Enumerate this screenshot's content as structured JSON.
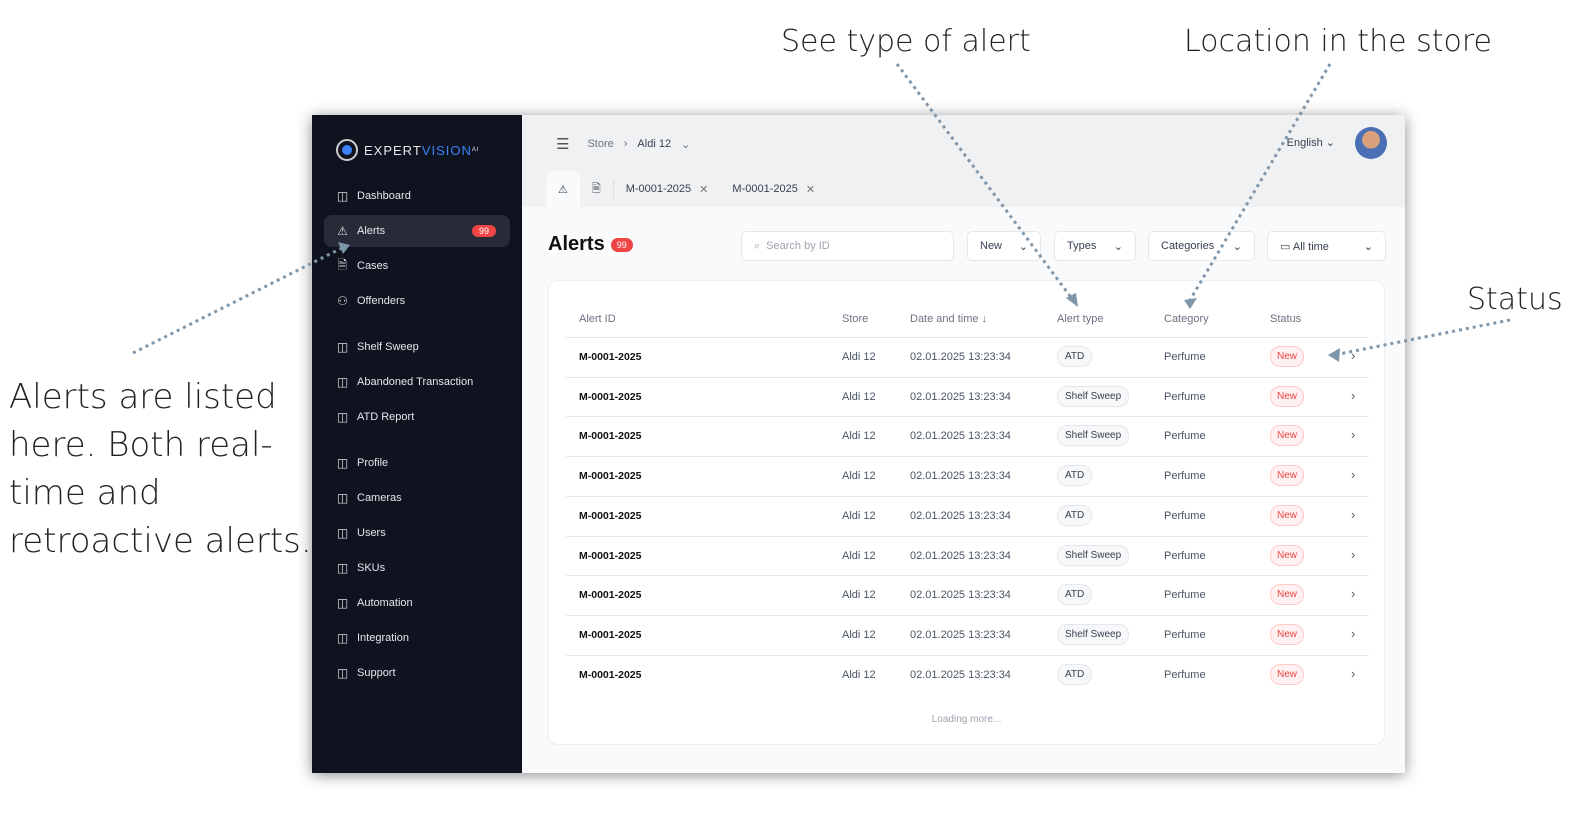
{
  "annotations": {
    "alert_type": "See type of alert",
    "location": "Location in the store",
    "status": "Status",
    "left": [
      "Alerts are listed",
      "here. Both real-",
      "time and",
      "retroactive alerts."
    ]
  },
  "logo": {
    "text1": "EXPERT",
    "text2": "VISION",
    "sup": "AI"
  },
  "sidebar": {
    "items": [
      {
        "label": "Dashboard",
        "icon": "grid-icon"
      },
      {
        "label": "Alerts",
        "icon": "warning-icon",
        "badge": "99",
        "active": true
      },
      {
        "label": "Cases",
        "icon": "document-icon"
      },
      {
        "label": "Offenders",
        "icon": "user-icon"
      },
      {
        "label": "Shelf Sweep",
        "icon": "grid-icon"
      },
      {
        "label": "Abandoned Transaction",
        "icon": "grid-icon"
      },
      {
        "label": "ATD Report",
        "icon": "grid-icon"
      },
      {
        "label": "Profile",
        "icon": "grid-icon"
      },
      {
        "label": "Cameras",
        "icon": "grid-icon"
      },
      {
        "label": "Users",
        "icon": "grid-icon"
      },
      {
        "label": "SKUs",
        "icon": "grid-icon"
      },
      {
        "label": "Automation",
        "icon": "grid-icon"
      },
      {
        "label": "Integration",
        "icon": "grid-icon"
      },
      {
        "label": "Support",
        "icon": "grid-icon"
      }
    ]
  },
  "header": {
    "breadcrumb": [
      "Store",
      "Aldi 12"
    ],
    "language": "English",
    "tabs": [
      "M-0001-2025",
      "M-0001-2025"
    ]
  },
  "page": {
    "title": "Alerts",
    "badge": "99",
    "search_placeholder": "Search by ID",
    "filters": {
      "status": "New",
      "types": "Types",
      "categories": "Categories",
      "time": "All time"
    }
  },
  "table": {
    "columns": [
      "Alert ID",
      "Store",
      "Date and time",
      "Alert type",
      "Category",
      "Status"
    ],
    "rows": [
      {
        "id": "M-0001-2025",
        "store": "Aldi 12",
        "date": "02.01.2025 13:23:34",
        "type": "ATD",
        "category": "Perfume",
        "status": "New"
      },
      {
        "id": "M-0001-2025",
        "store": "Aldi 12",
        "date": "02.01.2025 13:23:34",
        "type": "Shelf Sweep",
        "category": "Perfume",
        "status": "New"
      },
      {
        "id": "M-0001-2025",
        "store": "Aldi 12",
        "date": "02.01.2025 13:23:34",
        "type": "Shelf Sweep",
        "category": "Perfume",
        "status": "New"
      },
      {
        "id": "M-0001-2025",
        "store": "Aldi 12",
        "date": "02.01.2025 13:23:34",
        "type": "ATD",
        "category": "Perfume",
        "status": "New"
      },
      {
        "id": "M-0001-2025",
        "store": "Aldi 12",
        "date": "02.01.2025 13:23:34",
        "type": "ATD",
        "category": "Perfume",
        "status": "New"
      },
      {
        "id": "M-0001-2025",
        "store": "Aldi 12",
        "date": "02.01.2025 13:23:34",
        "type": "Shelf Sweep",
        "category": "Perfume",
        "status": "New"
      },
      {
        "id": "M-0001-2025",
        "store": "Aldi 12",
        "date": "02.01.2025 13:23:34",
        "type": "ATD",
        "category": "Perfume",
        "status": "New"
      },
      {
        "id": "M-0001-2025",
        "store": "Aldi 12",
        "date": "02.01.2025 13:23:34",
        "type": "Shelf Sweep",
        "category": "Perfume",
        "status": "New"
      },
      {
        "id": "M-0001-2025",
        "store": "Aldi 12",
        "date": "02.01.2025 13:23:34",
        "type": "ATD",
        "category": "Perfume",
        "status": "New"
      }
    ],
    "loading": "Loading more..."
  },
  "colors": {
    "sidebar": "#0f1320",
    "accent": "#3b82f6",
    "badge": "#ef4444",
    "arrow": "#7f95a8"
  }
}
